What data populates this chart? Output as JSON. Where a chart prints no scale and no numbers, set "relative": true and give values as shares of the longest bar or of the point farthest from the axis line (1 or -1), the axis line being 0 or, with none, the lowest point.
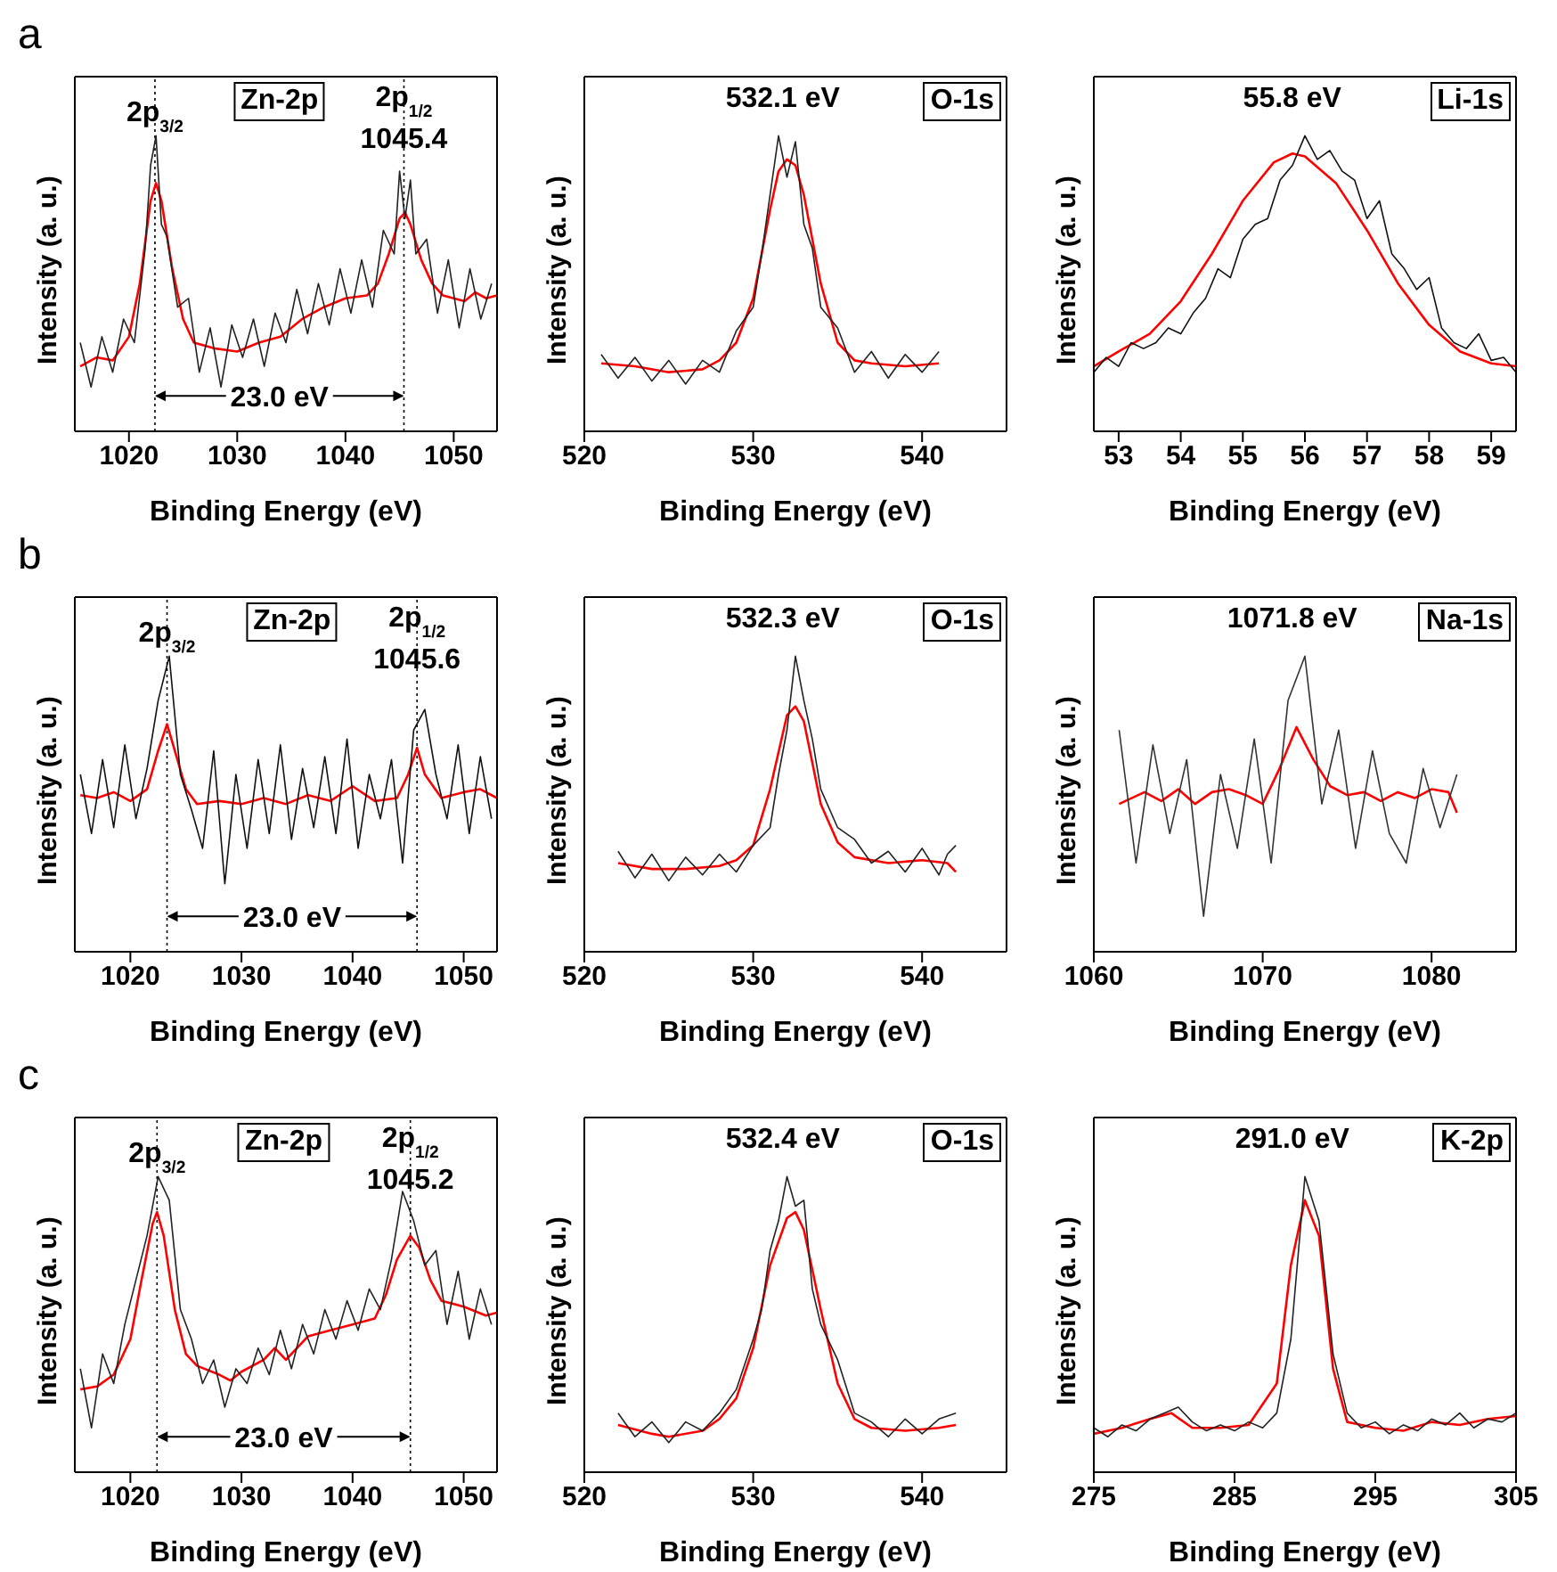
{
  "chart_data": [
    {
      "type": "line",
      "title": "a",
      "relative": true,
      "xlabel": "Binding Energy (eV)",
      "ylabel": "Intensity (a. u.)",
      "xlim": [
        1015,
        1054
      ],
      "xticks": [
        1020,
        1030,
        1040,
        1050
      ],
      "ref_lines": [
        {
          "axis": "x",
          "value": 1022.4,
          "line_style": "dotted"
        },
        {
          "axis": "x",
          "value": 1045.4,
          "line_style": "dotted"
        }
      ],
      "annotations": [
        "Zn-2p",
        "23.0 eV",
        {
          "text": "2p$_{3/2}$",
          "x": 1022.4,
          "y": 1.05
        },
        {
          "text": "2p$_{1/2}$",
          "x": 1045.4,
          "y": 1.1
        },
        {
          "text": "1045.4",
          "x": 1045.4,
          "y": 0.96
        }
      ],
      "series": [
        {
          "color": "#222222",
          "x": [
            1015.5,
            1016.5,
            1017.5,
            1018.5,
            1019.5,
            1020.5,
            1021.5,
            1022,
            1022.5,
            1023,
            1023.5,
            1024.5,
            1025.5,
            1026.5,
            1027.5,
            1028.5,
            1029.5,
            1030.5,
            1031.5,
            1032.5,
            1033.5,
            1034.5,
            1035.5,
            1036.5,
            1037.5,
            1038.5,
            1039.5,
            1040.5,
            1041.5,
            1042.5,
            1043.5,
            1044.5,
            1045,
            1045.5,
            1046,
            1046.5,
            1047.5,
            1048.5,
            1049.5,
            1050.5,
            1051.5,
            1052.5,
            1053.5
          ],
          "values": [
            0.3,
            0.15,
            0.32,
            0.2,
            0.38,
            0.3,
            0.62,
            0.9,
            1.0,
            0.7,
            0.66,
            0.42,
            0.45,
            0.2,
            0.35,
            0.15,
            0.36,
            0.25,
            0.38,
            0.22,
            0.4,
            0.3,
            0.48,
            0.33,
            0.5,
            0.36,
            0.55,
            0.4,
            0.58,
            0.42,
            0.68,
            0.6,
            0.88,
            0.72,
            0.85,
            0.6,
            0.65,
            0.4,
            0.58,
            0.35,
            0.55,
            0.38,
            0.5
          ]
        },
        {
          "color": "#ff0000",
          "x": [
            1015.5,
            1017,
            1018.5,
            1020,
            1021,
            1022,
            1022.5,
            1023,
            1024,
            1025,
            1026,
            1028,
            1030,
            1032,
            1034,
            1036,
            1038,
            1040,
            1042,
            1043,
            1044,
            1045,
            1045.5,
            1046,
            1047,
            1048,
            1049,
            1050,
            1051,
            1052,
            1053,
            1054
          ],
          "values": [
            0.22,
            0.25,
            0.24,
            0.32,
            0.5,
            0.78,
            0.84,
            0.78,
            0.55,
            0.38,
            0.3,
            0.28,
            0.27,
            0.3,
            0.32,
            0.38,
            0.42,
            0.45,
            0.46,
            0.5,
            0.6,
            0.72,
            0.74,
            0.7,
            0.58,
            0.5,
            0.46,
            0.45,
            0.44,
            0.47,
            0.45,
            0.46
          ]
        }
      ]
    },
    {
      "type": "line",
      "relative": true,
      "xlabel": "Binding Energy (eV)",
      "ylabel": "Intensity (a. u.)",
      "xlim": [
        520,
        545
      ],
      "xticks": [
        520,
        530,
        540
      ],
      "annotations": [
        "O-1s",
        "532.1 eV"
      ],
      "series": [
        {
          "color": "#222222",
          "x": [
            521,
            522,
            523,
            524,
            525,
            526,
            527,
            528,
            529,
            530,
            530.5,
            531,
            531.5,
            532,
            532.5,
            533,
            533.5,
            534,
            535,
            536,
            537,
            538,
            539,
            540,
            541
          ],
          "values": [
            0.26,
            0.18,
            0.25,
            0.17,
            0.24,
            0.16,
            0.24,
            0.2,
            0.34,
            0.42,
            0.6,
            0.8,
            1.0,
            0.86,
            0.98,
            0.7,
            0.62,
            0.42,
            0.35,
            0.2,
            0.27,
            0.18,
            0.26,
            0.2,
            0.27
          ]
        },
        {
          "color": "#ff0000",
          "x": [
            521,
            523,
            525,
            527,
            528,
            529,
            530,
            531,
            531.5,
            532,
            532.5,
            533,
            534,
            535,
            536,
            537,
            539,
            541
          ],
          "values": [
            0.23,
            0.22,
            0.2,
            0.21,
            0.24,
            0.3,
            0.45,
            0.75,
            0.88,
            0.92,
            0.9,
            0.8,
            0.5,
            0.3,
            0.24,
            0.23,
            0.22,
            0.23
          ]
        }
      ]
    },
    {
      "type": "line",
      "relative": true,
      "xlabel": "Binding Energy (eV)",
      "ylabel": "Intensity (a. u.)",
      "xlim": [
        52.6,
        59.4
      ],
      "xticks": [
        53,
        54,
        55,
        56,
        57,
        58,
        59
      ],
      "annotations": [
        "Li-1s",
        "55.8 eV"
      ],
      "series": [
        {
          "color": "#111111",
          "x": [
            52.6,
            52.8,
            53,
            53.2,
            53.4,
            53.6,
            53.8,
            54,
            54.2,
            54.4,
            54.6,
            54.8,
            55,
            55.2,
            55.4,
            55.6,
            55.8,
            56,
            56.2,
            56.4,
            56.6,
            56.8,
            57,
            57.2,
            57.4,
            57.6,
            57.8,
            58,
            58.2,
            58.4,
            58.6,
            58.8,
            59,
            59.2,
            59.4
          ],
          "values": [
            0.2,
            0.25,
            0.22,
            0.3,
            0.28,
            0.3,
            0.35,
            0.33,
            0.4,
            0.45,
            0.55,
            0.52,
            0.65,
            0.7,
            0.72,
            0.85,
            0.9,
            1.0,
            0.92,
            0.95,
            0.88,
            0.85,
            0.72,
            0.78,
            0.6,
            0.55,
            0.48,
            0.52,
            0.35,
            0.3,
            0.28,
            0.33,
            0.24,
            0.25,
            0.2
          ]
        },
        {
          "color": "#ff0000",
          "x": [
            52.6,
            53,
            53.5,
            54,
            54.5,
            55,
            55.5,
            55.8,
            56,
            56.5,
            57,
            57.5,
            58,
            58.5,
            59,
            59.4
          ],
          "values": [
            0.22,
            0.27,
            0.33,
            0.44,
            0.6,
            0.78,
            0.91,
            0.94,
            0.93,
            0.84,
            0.68,
            0.5,
            0.36,
            0.27,
            0.23,
            0.22
          ]
        }
      ]
    },
    {
      "type": "line",
      "title": "b",
      "relative": true,
      "xlabel": "Binding Energy (eV)",
      "ylabel": "Intensity (a. u.)",
      "xlim": [
        1015,
        1053
      ],
      "xticks": [
        1020,
        1030,
        1040,
        1050
      ],
      "ref_lines": [
        {
          "axis": "x",
          "value": 1023.3,
          "line_style": "dotted"
        },
        {
          "axis": "x",
          "value": 1045.8,
          "line_style": "dotted"
        }
      ],
      "annotations": [
        "Zn-2p",
        "23.0 eV",
        {
          "text": "2p$_{3/2}$",
          "x": 1023.3,
          "y": 1.05
        },
        {
          "text": "2p$_{1/2}$",
          "x": 1045.8,
          "y": 1.1
        },
        {
          "text": "1045.6",
          "x": 1045.8,
          "y": 0.96
        }
      ],
      "series": [
        {
          "color": "#111111",
          "x": [
            1015.5,
            1016.5,
            1017.5,
            1018.5,
            1019.5,
            1020.5,
            1021.5,
            1022.5,
            1023.5,
            1024.5,
            1025.5,
            1026.5,
            1027.5,
            1028.5,
            1029.5,
            1030.5,
            1031.5,
            1032.5,
            1033.5,
            1034.5,
            1035.5,
            1036.5,
            1037.5,
            1038.5,
            1039.5,
            1040.5,
            1041.5,
            1042.5,
            1043.5,
            1044.5,
            1045.5,
            1046.5,
            1047.5,
            1048.5,
            1049.5,
            1050.5,
            1051.5,
            1052.5
          ],
          "values": [
            0.6,
            0.4,
            0.65,
            0.42,
            0.7,
            0.45,
            0.62,
            0.85,
            1.0,
            0.6,
            0.48,
            0.35,
            0.68,
            0.23,
            0.6,
            0.35,
            0.65,
            0.4,
            0.7,
            0.38,
            0.62,
            0.42,
            0.66,
            0.4,
            0.72,
            0.35,
            0.6,
            0.45,
            0.65,
            0.3,
            0.75,
            0.82,
            0.6,
            0.45,
            0.7,
            0.4,
            0.66,
            0.45
          ]
        },
        {
          "color": "#ff0000",
          "x": [
            1015.5,
            1017,
            1018.5,
            1020,
            1021.5,
            1022.5,
            1023.3,
            1024,
            1025,
            1026,
            1028,
            1030,
            1032,
            1034,
            1036,
            1038,
            1040,
            1042,
            1044,
            1045,
            1045.8,
            1046.5,
            1048,
            1050,
            1051.5,
            1053
          ],
          "values": [
            0.53,
            0.52,
            0.54,
            0.51,
            0.55,
            0.68,
            0.77,
            0.68,
            0.55,
            0.5,
            0.51,
            0.5,
            0.52,
            0.5,
            0.53,
            0.51,
            0.56,
            0.51,
            0.52,
            0.6,
            0.69,
            0.6,
            0.52,
            0.54,
            0.55,
            0.52
          ]
        }
      ]
    },
    {
      "type": "line",
      "relative": true,
      "xlabel": "Binding Energy (eV)",
      "ylabel": "Intensity (a. u.)",
      "xlim": [
        520,
        545
      ],
      "xticks": [
        520,
        530,
        540
      ],
      "annotations": [
        "O-1s",
        "532.3 eV"
      ],
      "series": [
        {
          "color": "#222222",
          "x": [
            522,
            523,
            524,
            525,
            526,
            527,
            528,
            529,
            530,
            531,
            531.5,
            532,
            532.5,
            533,
            533.5,
            534,
            535,
            536,
            537,
            538,
            539,
            540,
            541,
            541.5,
            542
          ],
          "values": [
            0.34,
            0.25,
            0.33,
            0.24,
            0.32,
            0.26,
            0.33,
            0.27,
            0.36,
            0.42,
            0.6,
            0.75,
            1.0,
            0.85,
            0.72,
            0.55,
            0.42,
            0.38,
            0.3,
            0.34,
            0.27,
            0.35,
            0.26,
            0.33,
            0.36
          ]
        },
        {
          "color": "#ff0000",
          "x": [
            522,
            524,
            526,
            528,
            529,
            530,
            531,
            532,
            532.5,
            533,
            534,
            535,
            536,
            538,
            540,
            541.5,
            542
          ],
          "values": [
            0.3,
            0.28,
            0.28,
            0.29,
            0.31,
            0.36,
            0.55,
            0.8,
            0.83,
            0.78,
            0.5,
            0.37,
            0.32,
            0.3,
            0.31,
            0.3,
            0.27
          ]
        }
      ]
    },
    {
      "type": "line",
      "relative": true,
      "xlabel": "Binding Energy (eV)",
      "ylabel": "Intensity (a. u.)",
      "xlim": [
        1060,
        1085
      ],
      "xticks": [
        1060,
        1070,
        1080
      ],
      "annotations": [
        "Na-1s",
        "1071.8 eV"
      ],
      "series": [
        {
          "color": "#333333",
          "x": [
            1061.5,
            1062.5,
            1063.5,
            1064.5,
            1065.5,
            1066.5,
            1067.5,
            1068.5,
            1069.5,
            1070.5,
            1071.5,
            1072.5,
            1073.5,
            1074.5,
            1075.5,
            1076.5,
            1077.5,
            1078.5,
            1079.5,
            1080.5,
            1081.5
          ],
          "values": [
            0.75,
            0.3,
            0.7,
            0.4,
            0.65,
            0.12,
            0.6,
            0.35,
            0.72,
            0.3,
            0.85,
            1.0,
            0.5,
            0.75,
            0.35,
            0.68,
            0.4,
            0.3,
            0.62,
            0.42,
            0.6
          ]
        },
        {
          "color": "#ff0000",
          "x": [
            1061.5,
            1063,
            1064,
            1065,
            1066,
            1067,
            1068,
            1069,
            1070,
            1071,
            1072,
            1073,
            1074,
            1075,
            1076,
            1077,
            1078,
            1079,
            1080,
            1081,
            1081.5
          ],
          "values": [
            0.5,
            0.54,
            0.51,
            0.55,
            0.5,
            0.54,
            0.55,
            0.53,
            0.5,
            0.62,
            0.76,
            0.65,
            0.56,
            0.53,
            0.54,
            0.51,
            0.54,
            0.52,
            0.55,
            0.54,
            0.47
          ]
        }
      ]
    },
    {
      "type": "line",
      "title": "c",
      "relative": true,
      "xlabel": "Binding Energy (eV)",
      "ylabel": "Intensity (a. u.)",
      "xlim": [
        1015,
        1053
      ],
      "xticks": [
        1020,
        1030,
        1040,
        1050
      ],
      "ref_lines": [
        {
          "axis": "x",
          "value": 1022.4,
          "line_style": "dotted"
        },
        {
          "axis": "x",
          "value": 1045.2,
          "line_style": "dotted"
        }
      ],
      "annotations": [
        "Zn-2p",
        "23.0 eV",
        {
          "text": "2p$_{3/2}$",
          "x": 1022.4,
          "y": 1.05
        },
        {
          "text": "2p$_{1/2}$",
          "x": 1045.2,
          "y": 1.1
        },
        {
          "text": "1045.2",
          "x": 1045.2,
          "y": 0.96
        }
      ],
      "series": [
        {
          "color": "#222222",
          "x": [
            1015.5,
            1016.5,
            1017.5,
            1018.5,
            1019.5,
            1020.5,
            1021.5,
            1022.5,
            1023.5,
            1024.5,
            1025.5,
            1026.5,
            1027.5,
            1028.5,
            1029.5,
            1030.5,
            1031.5,
            1032.5,
            1033.5,
            1034.5,
            1035.5,
            1036.5,
            1037.5,
            1038.5,
            1039.5,
            1040.5,
            1041.5,
            1042.5,
            1043.5,
            1044.5,
            1045.5,
            1046.5,
            1047.5,
            1048.5,
            1049.5,
            1050.5,
            1051.5,
            1052.5
          ],
          "values": [
            0.35,
            0.15,
            0.4,
            0.3,
            0.5,
            0.65,
            0.8,
            1.0,
            0.92,
            0.55,
            0.45,
            0.3,
            0.38,
            0.22,
            0.35,
            0.3,
            0.42,
            0.33,
            0.48,
            0.35,
            0.5,
            0.4,
            0.55,
            0.45,
            0.58,
            0.48,
            0.62,
            0.55,
            0.72,
            0.95,
            0.85,
            0.7,
            0.75,
            0.5,
            0.68,
            0.45,
            0.62,
            0.5
          ]
        },
        {
          "color": "#ff0000",
          "x": [
            1015.5,
            1017,
            1018.5,
            1020,
            1021,
            1022,
            1022.4,
            1023,
            1024,
            1025,
            1026,
            1028,
            1029,
            1030,
            1032,
            1033,
            1034,
            1036,
            1038,
            1040,
            1042,
            1043,
            1044,
            1045.2,
            1046,
            1047,
            1048,
            1050,
            1052,
            1053
          ],
          "values": [
            0.28,
            0.29,
            0.33,
            0.45,
            0.65,
            0.84,
            0.88,
            0.8,
            0.55,
            0.4,
            0.36,
            0.33,
            0.31,
            0.34,
            0.38,
            0.42,
            0.38,
            0.46,
            0.48,
            0.5,
            0.52,
            0.6,
            0.72,
            0.8,
            0.76,
            0.65,
            0.58,
            0.56,
            0.53,
            0.54
          ]
        }
      ]
    },
    {
      "type": "line",
      "relative": true,
      "xlabel": "Binding Energy (eV)",
      "ylabel": "Intensity (a. u.)",
      "xlim": [
        520,
        545
      ],
      "xticks": [
        520,
        530,
        540
      ],
      "annotations": [
        "O-1s",
        "532.4 eV"
      ],
      "series": [
        {
          "color": "#222222",
          "x": [
            522,
            523,
            524,
            525,
            526,
            527,
            528,
            529,
            530,
            530.5,
            531,
            531.5,
            532,
            532.5,
            533,
            533.5,
            534,
            535,
            536,
            537,
            538,
            539,
            540,
            541,
            542
          ],
          "values": [
            0.2,
            0.12,
            0.17,
            0.1,
            0.17,
            0.14,
            0.2,
            0.28,
            0.45,
            0.55,
            0.75,
            0.85,
            1.0,
            0.9,
            0.92,
            0.62,
            0.5,
            0.38,
            0.2,
            0.17,
            0.12,
            0.18,
            0.13,
            0.18,
            0.2
          ]
        },
        {
          "color": "#ff0000",
          "x": [
            522,
            524,
            525,
            527,
            528,
            529,
            530,
            531,
            532,
            532.5,
            533,
            534,
            535,
            536,
            537,
            539,
            541,
            542
          ],
          "values": [
            0.16,
            0.13,
            0.12,
            0.14,
            0.18,
            0.25,
            0.42,
            0.7,
            0.86,
            0.88,
            0.82,
            0.55,
            0.3,
            0.18,
            0.15,
            0.14,
            0.15,
            0.16
          ]
        }
      ]
    },
    {
      "type": "line",
      "relative": true,
      "xlabel": "Binding Energy (eV)",
      "ylabel": "Intensity (a. u.)",
      "xlim": [
        275,
        305
      ],
      "xticks": [
        275,
        285,
        295,
        305
      ],
      "annotations": [
        "K-2p",
        "291.0 eV"
      ],
      "series": [
        {
          "color": "#222222",
          "x": [
            275,
            276,
            277,
            278,
            279,
            280,
            281,
            282,
            283,
            284,
            285,
            286,
            287,
            288,
            289,
            290,
            291,
            292,
            293,
            294,
            295,
            296,
            297,
            298,
            299,
            300,
            301,
            302,
            303,
            304,
            305
          ],
          "values": [
            0.15,
            0.12,
            0.16,
            0.14,
            0.18,
            0.2,
            0.22,
            0.17,
            0.14,
            0.16,
            0.14,
            0.17,
            0.15,
            0.2,
            0.45,
            1.0,
            0.85,
            0.4,
            0.2,
            0.15,
            0.17,
            0.13,
            0.16,
            0.14,
            0.18,
            0.16,
            0.2,
            0.15,
            0.18,
            0.17,
            0.2
          ]
        },
        {
          "color": "#ff0000",
          "x": [
            275,
            277,
            279,
            280.5,
            282,
            284,
            286,
            288,
            289,
            290,
            291,
            292,
            293,
            295,
            297,
            299,
            301,
            303,
            305
          ],
          "values": [
            0.13,
            0.15,
            0.18,
            0.2,
            0.15,
            0.15,
            0.16,
            0.3,
            0.7,
            0.92,
            0.8,
            0.35,
            0.17,
            0.15,
            0.14,
            0.17,
            0.16,
            0.18,
            0.19
          ]
        }
      ]
    }
  ]
}
